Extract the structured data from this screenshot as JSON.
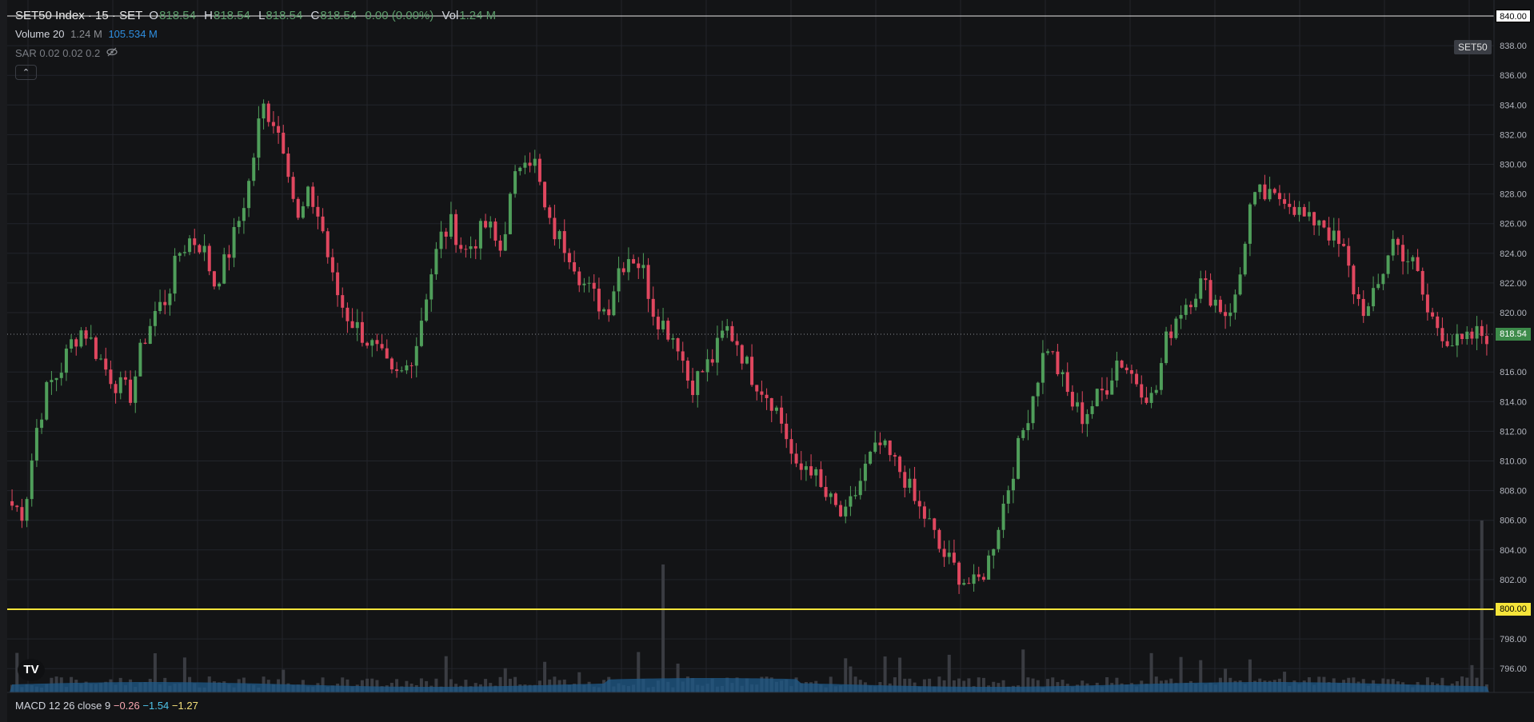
{
  "legend": {
    "symbol": "SET50 Index · 15 · SET",
    "o_label": "O",
    "o_value": "818.54",
    "h_label": "H",
    "h_value": "818.54",
    "l_label": "L",
    "l_value": "818.54",
    "c_label": "C",
    "c_value": "818.54",
    "change": "0.00 (0.00%)",
    "vol_label": "Vol",
    "vol_value": "1.24 M"
  },
  "volume_indicator": {
    "name": "Volume 20",
    "value": "1.24 M",
    "ma_value": "105.534 M"
  },
  "sar_indicator": {
    "name": "SAR 0.02 0.02 0.2"
  },
  "macd_indicator": {
    "name": "MACD 12 26 close 9",
    "v1": "−0.26",
    "v2": "−1.54",
    "v3": "−1.27"
  },
  "symbol_tag": "SET50",
  "price_labels": {
    "top": "840.00",
    "current": "818.54",
    "support": "800.00"
  },
  "colors": {
    "up": "#4f9e5a",
    "down": "#e0475f",
    "background": "#131416",
    "grid": "#23252b",
    "support": "#f5e43a",
    "volume_ma": "#1f5a8a"
  },
  "icons": {
    "collapse": "chevron-up-icon",
    "hide": "eye-off-icon",
    "logo": "tradingview-logo-icon"
  },
  "chart_data": {
    "type": "candlestick",
    "y_axis_ticks": [
      "838.00",
      "836.00",
      "834.00",
      "832.00",
      "830.00",
      "828.00",
      "826.00",
      "824.00",
      "822.00",
      "820.00",
      "816.00",
      "814.00",
      "812.00",
      "810.00",
      "808.00",
      "806.00",
      "804.00",
      "802.00",
      "798.00",
      "796.00"
    ],
    "ylim": [
      795,
      840.5
    ],
    "horizontal_lines": [
      800,
      840
    ],
    "last_price": 818.54,
    "close_path": [
      807,
      806.5,
      812,
      815,
      816,
      818,
      819,
      817.5,
      816,
      815,
      814.5,
      818,
      820,
      821,
      824,
      825,
      824.5,
      822,
      823.5,
      826,
      829,
      834,
      833,
      831,
      826,
      828,
      826,
      822,
      820,
      819,
      818,
      817,
      815.5,
      816,
      818,
      822,
      825,
      826,
      824,
      825,
      826,
      824,
      828,
      831,
      830,
      826,
      825,
      824,
      822,
      821,
      820,
      823,
      824,
      823,
      820,
      819,
      818,
      815,
      816,
      817,
      819,
      818,
      816,
      815,
      814,
      812,
      809,
      810,
      808,
      807,
      806,
      808,
      810,
      811,
      810,
      809,
      807,
      806,
      804,
      803,
      802,
      801.5,
      803,
      806,
      809,
      812,
      815,
      818,
      816,
      814,
      813,
      814,
      815,
      817,
      816,
      815,
      814,
      818,
      820,
      821,
      822,
      821,
      820,
      821,
      827,
      828,
      827.5,
      828,
      827,
      826,
      826.5,
      825,
      824,
      821,
      820,
      822,
      825,
      824,
      823,
      820,
      819,
      818,
      817.8,
      818.5,
      818.54
    ],
    "volume_note": "low-volume bars with a few spikes; 20-period volume MA drawn as a filled area"
  }
}
